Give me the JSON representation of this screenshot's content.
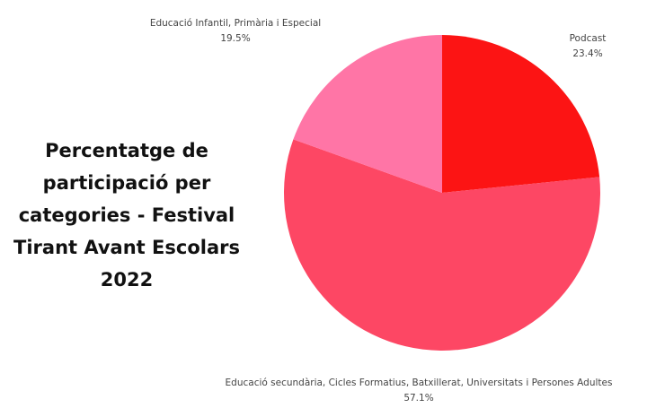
{
  "chart_data": {
    "type": "pie",
    "title": "Percentatge de\nparticipació per\ncategories - Festival\nTirant Avant Escolars\n2022",
    "categories": [
      "Podcast",
      "Educació secundària, Cicles Formatius, Batxillerat, Universitats i Persones Adultes",
      "Educació Infantil, Primària i Especial"
    ],
    "values": [
      23.4,
      57.1,
      19.5
    ],
    "value_labels": [
      "23.4%",
      "57.1%",
      "19.5%"
    ],
    "colors": [
      "#fc1414",
      "#fd4764",
      "#ff75a6"
    ]
  }
}
